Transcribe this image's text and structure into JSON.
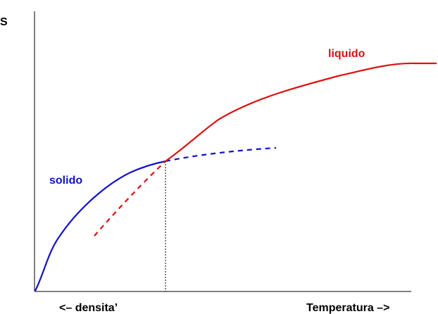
{
  "labels": {
    "y_axis": "S",
    "liquid": "liquido",
    "solid": "solido",
    "x_left": "<– densita’",
    "x_right": "Temperatura –>"
  },
  "colors": {
    "liquid": "#dd1111",
    "solid": "#1111cc",
    "axis": "#000000",
    "guide": "#000000"
  },
  "curves": {
    "solid_stable": "solid",
    "solid_metastable": "dashed",
    "liquid_stable": "solid",
    "liquid_metastable": "dashed",
    "transition_marker": "dotted vertical line"
  }
}
